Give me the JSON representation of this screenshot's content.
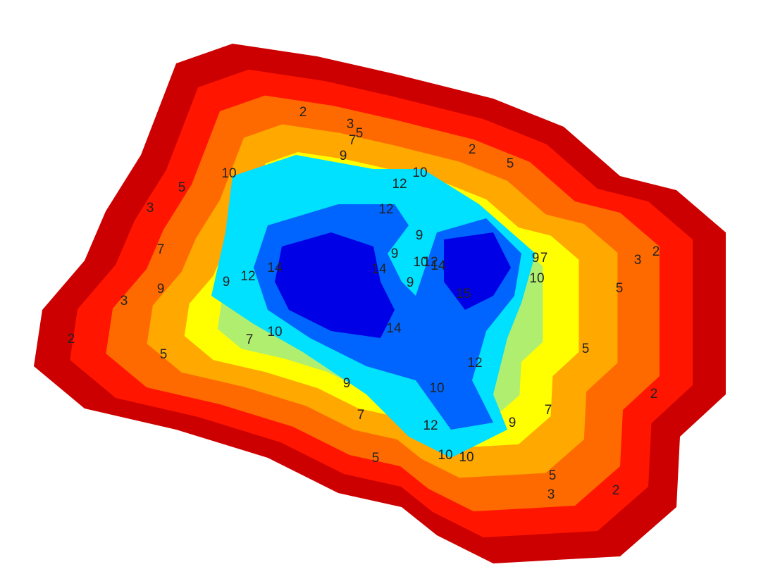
{
  "chart_data": {
    "type": "contour",
    "levels": [
      2,
      3,
      5,
      7,
      9,
      10,
      12,
      14,
      15
    ],
    "colors": [
      "#cc0000",
      "#ff1500",
      "#ff6a00",
      "#ffa800",
      "#ffff00",
      "#b0ee70",
      "#00e0ff",
      "#0064ff",
      "#0000e6"
    ],
    "labels": [
      2,
      3,
      5,
      7,
      9,
      2,
      5,
      10,
      12,
      10,
      5,
      3,
      12,
      9,
      7,
      9,
      10,
      12,
      14,
      9,
      7,
      3,
      2,
      12,
      14,
      14,
      9,
      9,
      9,
      10,
      15,
      5,
      3,
      14,
      10,
      7,
      2,
      5,
      5,
      12,
      9,
      10,
      2,
      7,
      7,
      9,
      12,
      10,
      10,
      5,
      5,
      2,
      3
    ]
  }
}
